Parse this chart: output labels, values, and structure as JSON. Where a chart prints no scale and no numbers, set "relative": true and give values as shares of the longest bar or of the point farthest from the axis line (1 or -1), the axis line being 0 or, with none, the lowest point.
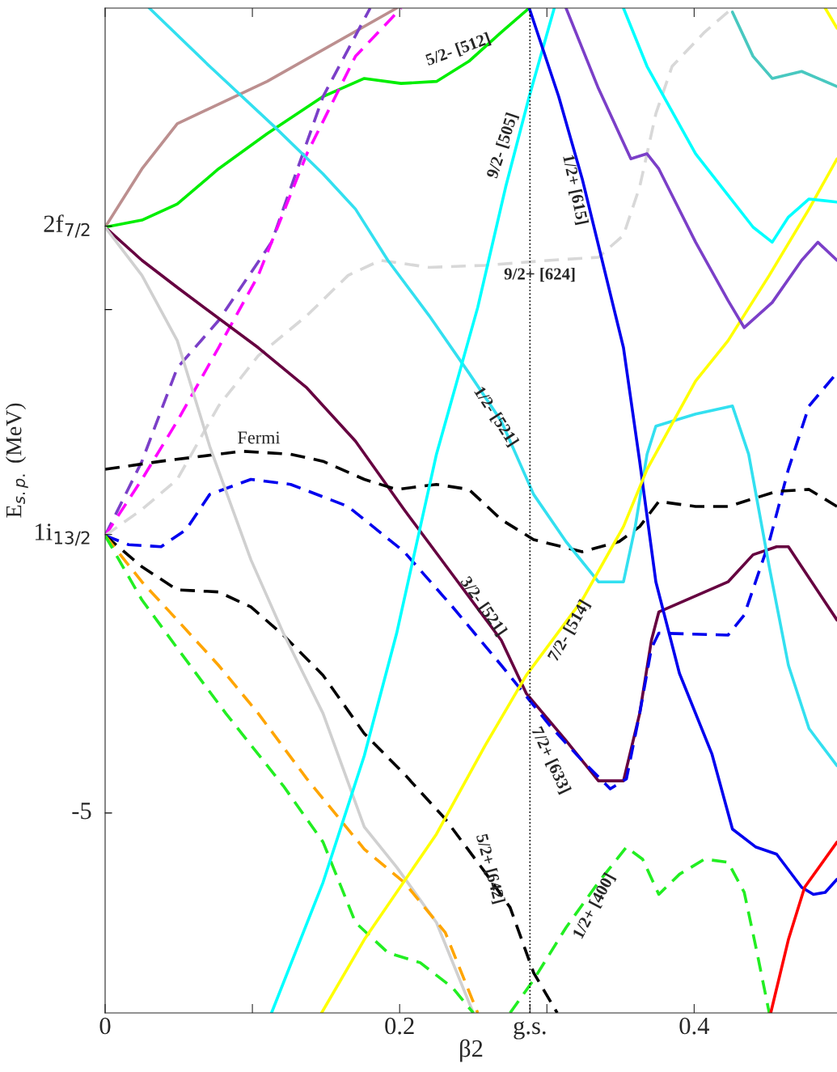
{
  "chart_data": {
    "type": "line",
    "relative": true,
    "xlabel": "β2",
    "ylabel": "E$_{s.p.}$ (MeV)",
    "xlim": [
      0,
      0.497
    ],
    "xticks": [
      0,
      {
        "value": 0.1,
        "label": null
      },
      0.2,
      {
        "value": 0.2885,
        "label": "g.s."
      },
      {
        "value": 0.3,
        "label": null
      },
      0.4
    ],
    "grid": false,
    "legend": false,
    "ref_lines": [
      {
        "axis": "x",
        "value": 0.2885,
        "color": "#000000",
        "line_style": "dotted"
      }
    ],
    "series": [
      {
        "color": "#bc8f8f",
        "line_style": "solid",
        "x": [
          0,
          0.025,
          0.049,
          0.11,
          0.198
        ],
        "values": [
          0.782,
          0.84,
          0.885,
          0.927,
          1
        ]
      },
      {
        "color": "#00ee00",
        "line_style": "solid",
        "x": [
          0,
          0.025,
          0.049,
          0.077,
          0.11,
          0.148,
          0.176,
          0.201,
          0.225,
          0.247,
          0.269,
          0.288
        ],
        "values": [
          0.782,
          0.789,
          0.805,
          0.84,
          0.875,
          0.912,
          0.93,
          0.925,
          0.927,
          0.947,
          0.976,
          1
        ]
      },
      {
        "color": "#7b3fc8",
        "line_style": "dashed",
        "x": [
          0,
          0.025,
          0.049,
          0.077,
          0.113,
          0.148,
          0.18
        ],
        "values": [
          0.475,
          0.549,
          0.642,
          0.689,
          0.767,
          0.912,
          1
        ]
      },
      {
        "color": "#ff00ff",
        "line_style": "dashed",
        "x": [
          0,
          0.025,
          0.049,
          0.077,
          0.104,
          0.137,
          0.17,
          0.201
        ],
        "values": [
          0.475,
          0.531,
          0.589,
          0.662,
          0.734,
          0.855,
          0.952,
          1
        ]
      },
      {
        "color": "#d8d8d8",
        "line_style": "dashed",
        "x": [
          0,
          0.025,
          0.049,
          0.077,
          0.104,
          0.137,
          0.165,
          0.187,
          0.22,
          0.258,
          0.302,
          0.335,
          0.352,
          0.363,
          0.374,
          0.385,
          0.407,
          0.426
        ],
        "values": [
          0.475,
          0.501,
          0.531,
          0.604,
          0.654,
          0.694,
          0.734,
          0.749,
          0.742,
          0.744,
          0.749,
          0.752,
          0.774,
          0.822,
          0.895,
          0.942,
          0.976,
          1
        ]
      },
      {
        "color": "#660040",
        "line_style": "solid",
        "x": [
          0,
          0.025,
          0.049,
          0.104,
          0.137,
          0.17,
          0.203,
          0.236,
          0.269,
          0.286,
          0.313,
          0.335,
          0.352,
          0.363,
          0.371,
          0.376,
          0.423,
          0.44,
          0.456,
          0.464,
          0.473,
          0.497
        ],
        "values": [
          0.782,
          0.749,
          0.722,
          0.662,
          0.622,
          0.569,
          0.501,
          0.436,
          0.371,
          0.318,
          0.271,
          0.231,
          0.231,
          0.298,
          0.371,
          0.399,
          0.429,
          0.456,
          0.464,
          0.464,
          0.444,
          0.391
        ]
      },
      {
        "color": "#0000ee",
        "line_style": "dashed",
        "x": [
          0,
          0.016,
          0.038,
          0.055,
          0.071,
          0.099,
          0.126,
          0.165,
          0.203,
          0.236,
          0.269,
          0.302,
          0.324,
          0.343,
          0.354,
          0.363,
          0.371,
          0.376,
          0.423,
          0.434,
          0.451,
          0.464,
          0.478,
          0.497
        ],
        "values": [
          0.475,
          0.466,
          0.464,
          0.481,
          0.516,
          0.531,
          0.526,
          0.504,
          0.459,
          0.404,
          0.346,
          0.286,
          0.251,
          0.223,
          0.233,
          0.298,
          0.363,
          0.378,
          0.376,
          0.396,
          0.469,
          0.541,
          0.604,
          0.637
        ]
      },
      {
        "color": "#000000",
        "line_style": "dashed",
        "x": [
          0,
          0.038,
          0.093,
          0.126,
          0.148,
          0.176,
          0.198,
          0.225,
          0.247,
          0.269,
          0.291,
          0.324,
          0.349,
          0.363,
          0.376,
          0.401,
          0.423,
          0.456,
          0.478,
          0.497
        ],
        "values": [
          0.541,
          0.549,
          0.559,
          0.556,
          0.549,
          0.531,
          0.521,
          0.526,
          0.521,
          0.491,
          0.471,
          0.459,
          0.469,
          0.484,
          0.509,
          0.504,
          0.504,
          0.519,
          0.521,
          0.504
        ]
      },
      {
        "color": "#000000",
        "line_style": "dashed",
        "x": [
          0,
          0.025,
          0.049,
          0.077,
          0.099,
          0.121,
          0.148,
          0.176,
          0.203,
          0.231,
          0.258,
          0.275,
          0.291,
          0.307
        ],
        "values": [
          0.475,
          0.444,
          0.421,
          0.419,
          0.404,
          0.376,
          0.336,
          0.278,
          0.238,
          0.193,
          0.14,
          0.105,
          0.04,
          0
        ]
      },
      {
        "color": "#d0d0d0",
        "line_style": "solid",
        "x": [
          0,
          0.025,
          0.049,
          0.071,
          0.099,
          0.121,
          0.148,
          0.176,
          0.198,
          0.225,
          0.25
        ],
        "values": [
          0.782,
          0.734,
          0.669,
          0.564,
          0.451,
          0.378,
          0.298,
          0.185,
          0.145,
          0.09,
          0
        ]
      },
      {
        "color": "#ffa500",
        "line_style": "dashed",
        "x": [
          0,
          0.025,
          0.049,
          0.077,
          0.104,
          0.137,
          0.176,
          0.203,
          0.231,
          0.253
        ],
        "values": [
          0.475,
          0.429,
          0.391,
          0.346,
          0.298,
          0.233,
          0.163,
          0.13,
          0.08,
          0
        ]
      },
      {
        "color": "#22ee22",
        "line_style": "dashed",
        "x": [
          0,
          0.025,
          0.049,
          0.082,
          0.121,
          0.148,
          0.17,
          0.192,
          0.214,
          0.236,
          0.25
        ],
        "values": [
          0.475,
          0.411,
          0.363,
          0.298,
          0.226,
          0.17,
          0.09,
          0.06,
          0.05,
          0.025,
          0
        ]
      },
      {
        "color": "#22ee22",
        "line_style": "dashed",
        "x": [
          0.275,
          0.291,
          0.313,
          0.335,
          0.354,
          0.365,
          0.376,
          0.39,
          0.407,
          0.423,
          0.434,
          0.442,
          0.451
        ],
        "values": [
          0,
          0.033,
          0.085,
          0.13,
          0.165,
          0.153,
          0.118,
          0.138,
          0.153,
          0.15,
          0.12,
          0.065,
          0
        ]
      },
      {
        "color": "#33e0f0",
        "line_style": "solid",
        "x": [
          0.03,
          0.071,
          0.115,
          0.148,
          0.17,
          0.192,
          0.22,
          0.247,
          0.269,
          0.291,
          0.313,
          0.335,
          0.352,
          0.36,
          0.368,
          0.374,
          0.401,
          0.426,
          0.437,
          0.451,
          0.464,
          0.478,
          0.497
        ],
        "values": [
          1,
          0.942,
          0.882,
          0.835,
          0.8,
          0.749,
          0.694,
          0.637,
          0.589,
          0.516,
          0.469,
          0.429,
          0.429,
          0.484,
          0.556,
          0.584,
          0.596,
          0.604,
          0.556,
          0.444,
          0.346,
          0.283,
          0.246
        ]
      },
      {
        "color": "#00ffff",
        "line_style": "solid",
        "x": [
          0.113,
          0.148,
          0.176,
          0.198,
          0.225,
          0.253,
          0.272,
          0.288,
          0.305
        ],
        "values": [
          0,
          0.13,
          0.256,
          0.378,
          0.556,
          0.702,
          0.822,
          0.912,
          1
        ]
      },
      {
        "color": "#0000ee",
        "line_style": "solid",
        "x": [
          0.288,
          0.308,
          0.324,
          0.352,
          0.363,
          0.374,
          0.39,
          0.412,
          0.426,
          0.442,
          0.456,
          0.473,
          0.481,
          0.489,
          0.497
        ],
        "values": [
          1,
          0.912,
          0.83,
          0.662,
          0.549,
          0.429,
          0.338,
          0.258,
          0.183,
          0.165,
          0.158,
          0.125,
          0.118,
          0.12,
          0.133
        ]
      },
      {
        "color": "#ffff00",
        "line_style": "solid",
        "x": [
          0.147,
          0.176,
          0.225,
          0.258,
          0.286,
          0.324,
          0.352,
          0.368,
          0.401,
          0.423,
          0.451,
          0.478,
          0.497
        ],
        "values": [
          0,
          0.073,
          0.178,
          0.266,
          0.336,
          0.411,
          0.484,
          0.541,
          0.629,
          0.669,
          0.734,
          0.8,
          0.85
        ]
      },
      {
        "color": "#ffff00",
        "line_style": "solid",
        "x": [
          0.489,
          0.497
        ],
        "values": [
          1,
          0.98
        ]
      },
      {
        "color": "#7b3fc8",
        "line_style": "solid",
        "x": [
          0.313,
          0.335,
          0.357,
          0.368,
          0.376,
          0.401,
          0.423,
          0.434,
          0.453,
          0.473,
          0.484,
          0.497
        ],
        "values": [
          1,
          0.92,
          0.85,
          0.855,
          0.84,
          0.767,
          0.709,
          0.682,
          0.707,
          0.749,
          0.767,
          0.749
        ]
      },
      {
        "color": "#00ffff",
        "line_style": "solid",
        "x": [
          0.352,
          0.368,
          0.401,
          0.44,
          0.453,
          0.464,
          0.478,
          0.497
        ],
        "values": [
          1,
          0.942,
          0.855,
          0.782,
          0.767,
          0.792,
          0.81,
          0.807
        ]
      },
      {
        "color": "#48c8c0",
        "line_style": "solid",
        "x": [
          0.426,
          0.44,
          0.453,
          0.473,
          0.497
        ],
        "values": [
          0.996,
          0.952,
          0.93,
          0.937,
          0.922
        ]
      },
      {
        "color": "#ff0000",
        "line_style": "solid",
        "x": [
          0.452,
          0.464,
          0.475,
          0.497
        ],
        "values": [
          0,
          0.073,
          0.125,
          0.17
        ]
      }
    ],
    "annotations": [
      "Fermi",
      "5/2- [512]",
      "9/2- [505]",
      "1/2+ [615]",
      "9/2+ [624]",
      "1/2- [521]",
      "3/2- [521]",
      "7/2- [514]",
      "7/2+ [633]",
      "5/2+ [642]",
      "1/2+ [400]",
      "2f$_{7/2}$",
      "1i$_{13/2}$",
      "-5"
    ]
  }
}
